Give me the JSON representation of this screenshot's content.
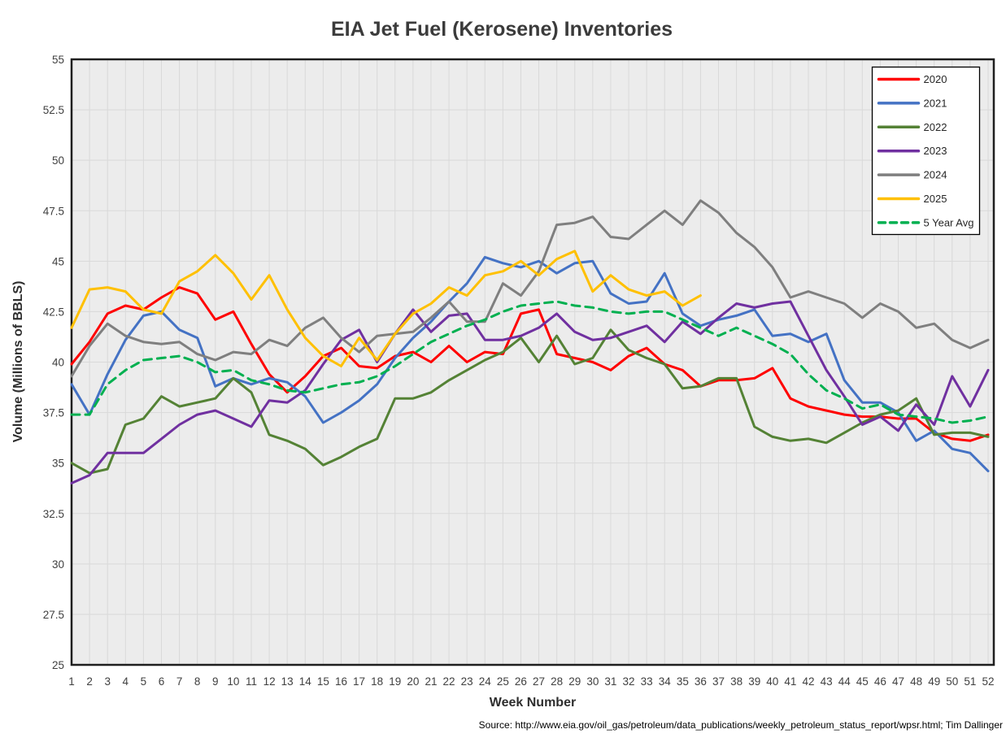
{
  "title": "EIA Jet Fuel (Kerosene) Inventories",
  "source_text": "Source: http://www.eia.gov/oil_gas/petroleum/data_publications/weekly_petroleum_status_report/wpsr.html; Tim Dallinger",
  "colors": {
    "plot_background": "#ececec",
    "gridline": "#d9d9d9",
    "plot_border": "#1f1f1f",
    "legend_border": "#000000",
    "legend_background": "#ffffff",
    "text": "#404040"
  },
  "chart_data": {
    "type": "line",
    "title": "EIA Jet Fuel (Kerosene) Inventories",
    "xlabel": "Week Number",
    "ylabel": "Volume (Millions of BBLS)",
    "x": [
      1,
      2,
      3,
      4,
      5,
      6,
      7,
      8,
      9,
      10,
      11,
      12,
      13,
      14,
      15,
      16,
      17,
      18,
      19,
      20,
      21,
      22,
      23,
      24,
      25,
      26,
      27,
      28,
      29,
      30,
      31,
      32,
      33,
      34,
      35,
      36,
      37,
      38,
      39,
      40,
      41,
      42,
      43,
      44,
      45,
      46,
      47,
      48,
      49,
      50,
      51,
      52
    ],
    "xlim": [
      1,
      52
    ],
    "ylim": [
      25,
      55
    ],
    "ytick_step": 2.5,
    "ytick_labels": [
      "25",
      "27.5",
      "30",
      "32.5",
      "35",
      "37.5",
      "40",
      "42.5",
      "45",
      "47.5",
      "50",
      "52.5",
      "55"
    ],
    "grid": true,
    "legend_position": "top-right",
    "legend_entries": [
      "2020",
      "2021",
      "2022",
      "2023",
      "2024",
      "2025",
      "5 Year Avg"
    ],
    "series": [
      {
        "name": "2020",
        "color": "#FF0000",
        "dash": false,
        "values": [
          39.9,
          41.0,
          42.4,
          42.8,
          42.6,
          43.2,
          43.7,
          43.4,
          42.1,
          42.5,
          40.9,
          39.4,
          38.5,
          39.3,
          40.3,
          40.7,
          39.8,
          39.7,
          40.3,
          40.5,
          40.0,
          40.8,
          40.0,
          40.5,
          40.4,
          42.4,
          42.6,
          40.4,
          40.2,
          40.0,
          39.6,
          40.3,
          40.7,
          39.9,
          39.6,
          38.8,
          39.1,
          39.1,
          39.2,
          39.7,
          38.2,
          37.8,
          37.6,
          37.4,
          37.3,
          37.3,
          37.2,
          37.2,
          36.5,
          36.2,
          36.1,
          36.4
        ]
      },
      {
        "name": "2021",
        "color": "#4472C4",
        "dash": false,
        "values": [
          38.9,
          37.4,
          39.4,
          41.1,
          42.3,
          42.5,
          41.6,
          41.2,
          38.8,
          39.2,
          38.9,
          39.2,
          39.0,
          38.3,
          37.0,
          37.5,
          38.1,
          38.9,
          40.2,
          41.2,
          42.0,
          43.0,
          43.9,
          45.2,
          44.9,
          44.7,
          45.0,
          44.4,
          44.9,
          45.0,
          43.4,
          42.9,
          43.0,
          44.4,
          42.4,
          41.8,
          42.1,
          42.3,
          42.6,
          41.3,
          41.4,
          41.0,
          41.4,
          39.1,
          38.0,
          38.0,
          37.5,
          36.1,
          36.6,
          35.7,
          35.5,
          34.6
        ]
      },
      {
        "name": "2022",
        "color": "#548235",
        "dash": false,
        "values": [
          35.0,
          34.5,
          34.7,
          36.9,
          37.2,
          38.3,
          37.8,
          38.0,
          38.2,
          39.2,
          38.5,
          36.4,
          36.1,
          35.7,
          34.9,
          35.3,
          35.8,
          36.2,
          38.2,
          38.2,
          38.5,
          39.1,
          39.6,
          40.1,
          40.5,
          41.2,
          40.0,
          41.3,
          39.9,
          40.2,
          41.6,
          40.6,
          40.2,
          39.9,
          38.7,
          38.8,
          39.2,
          39.2,
          36.8,
          36.3,
          36.1,
          36.2,
          36.0,
          36.5,
          37.0,
          37.4,
          37.6,
          38.2,
          36.4,
          36.5,
          36.5,
          36.3
        ]
      },
      {
        "name": "2023",
        "color": "#7030A0",
        "dash": false,
        "values": [
          34.0,
          34.4,
          35.5,
          35.5,
          35.5,
          36.2,
          36.9,
          37.4,
          37.6,
          37.2,
          36.8,
          38.1,
          38.0,
          38.6,
          39.9,
          41.1,
          41.6,
          40.0,
          41.4,
          42.6,
          41.5,
          42.3,
          42.4,
          41.1,
          41.1,
          41.3,
          41.7,
          42.4,
          41.5,
          41.1,
          41.2,
          41.5,
          41.8,
          41.0,
          42.0,
          41.4,
          42.2,
          42.9,
          42.7,
          42.9,
          43.0,
          41.3,
          39.6,
          38.3,
          36.9,
          37.3,
          36.6,
          37.9,
          36.9,
          39.3,
          37.8,
          39.6
        ]
      },
      {
        "name": "2024",
        "color": "#7F7F7F",
        "dash": false,
        "values": [
          39.3,
          40.8,
          41.9,
          41.3,
          41.0,
          40.9,
          41.0,
          40.4,
          40.1,
          40.5,
          40.4,
          41.1,
          40.8,
          41.7,
          42.2,
          41.2,
          40.5,
          41.3,
          41.4,
          41.5,
          42.2,
          43.0,
          42.0,
          42.0,
          43.9,
          43.3,
          44.5,
          46.8,
          46.9,
          47.2,
          46.2,
          46.1,
          46.8,
          47.5,
          46.8,
          48.0,
          47.4,
          46.4,
          45.7,
          44.7,
          43.2,
          43.5,
          43.2,
          42.9,
          42.2,
          42.9,
          42.5,
          41.7,
          41.9,
          41.1,
          40.7,
          41.1
        ]
      },
      {
        "name": "2025",
        "color": "#FFC000",
        "dash": false,
        "values": [
          41.7,
          43.6,
          43.7,
          43.5,
          42.6,
          42.4,
          44.0,
          44.5,
          45.3,
          44.4,
          43.1,
          44.3,
          42.6,
          41.2,
          40.3,
          39.8,
          41.2,
          40.1,
          41.4,
          42.4,
          42.9,
          43.7,
          43.3,
          44.3,
          44.5,
          45.0,
          44.3,
          45.1,
          45.5,
          43.5,
          44.3,
          43.6,
          43.3,
          43.5,
          42.8,
          43.3
        ]
      },
      {
        "name": "5 Year Avg",
        "color": "#00B050",
        "dash": true,
        "values": [
          37.4,
          37.4,
          38.9,
          39.6,
          40.1,
          40.2,
          40.3,
          40.0,
          39.5,
          39.6,
          39.1,
          38.9,
          38.6,
          38.5,
          38.7,
          38.9,
          39.0,
          39.3,
          39.8,
          40.4,
          41.0,
          41.4,
          41.8,
          42.1,
          42.5,
          42.8,
          42.9,
          43.0,
          42.8,
          42.7,
          42.5,
          42.4,
          42.5,
          42.5,
          42.1,
          41.7,
          41.3,
          41.7,
          41.3,
          40.9,
          40.4,
          39.4,
          38.6,
          38.2,
          37.7,
          37.9,
          37.4,
          37.3,
          37.2,
          37.0,
          37.1,
          37.3
        ]
      }
    ]
  }
}
